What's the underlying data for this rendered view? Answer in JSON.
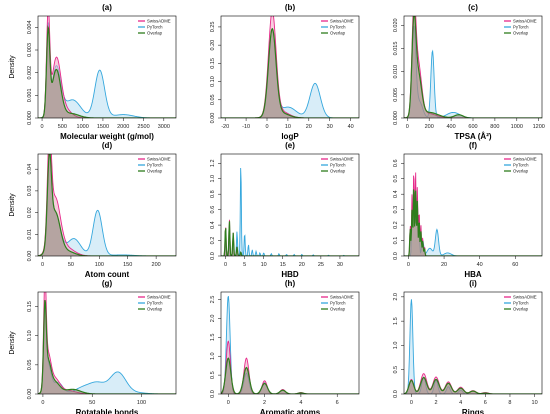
{
  "figure": {
    "legend": [
      "SwissADME",
      "PyTorch",
      "Overlap"
    ],
    "colors": {
      "SwissADME": "#e6298a",
      "PyTorch": "#35a7dd",
      "Overlap": "#2e7d1c",
      "fill_swiss": "#f2a5c3",
      "fill_py": "#a8d8ef",
      "fill_overlap": "#7a7a5a"
    }
  },
  "chart_data": [
    {
      "type": "area",
      "panel": "(a)",
      "xlabel": "Molecular weight (g/mol)",
      "ylabel": "Density",
      "xlim": [
        -100,
        3300
      ],
      "ylim": [
        0,
        0.0045
      ],
      "xticks": [
        0,
        500,
        1000,
        1500,
        2000,
        2500,
        3000
      ],
      "yticks": [
        0,
        0.001,
        0.002,
        0.003,
        0.004
      ],
      "yticklabels": [
        "0.000",
        "0.001",
        "0.002",
        "0.003",
        "0.004"
      ],
      "series": [
        {
          "name": "SwissADME",
          "peaks": [
            [
              150,
              0.0044,
              40
            ],
            [
              350,
              0.0025,
              110
            ],
            [
              550,
              0.0004,
              160
            ]
          ]
        },
        {
          "name": "PyTorch",
          "peaks": [
            [
              150,
              0.0038,
              40
            ],
            [
              350,
              0.0022,
              110
            ],
            [
              750,
              0.0008,
              200
            ],
            [
              1420,
              0.0021,
              120
            ],
            [
              2000,
              0.00015,
              250
            ]
          ]
        },
        {
          "name": "Overlap",
          "peaks": [
            [
              150,
              0.0036,
              40
            ],
            [
              350,
              0.0021,
              110
            ],
            [
              700,
              0.0002,
              200
            ]
          ]
        }
      ]
    },
    {
      "type": "area",
      "panel": "(b)",
      "xlabel": "logP",
      "ylabel": "",
      "xlim": [
        -22,
        44
      ],
      "ylim": [
        0,
        0.28
      ],
      "xticks": [
        -20,
        -10,
        0,
        10,
        20,
        30,
        40
      ],
      "yticks": [
        0,
        0.05,
        0.1,
        0.15,
        0.2,
        0.25
      ],
      "yticklabels": [
        "0.00",
        "0.05",
        "0.10",
        "0.15",
        "0.20",
        "0.25"
      ],
      "series": [
        {
          "name": "SwissADME",
          "peaks": [
            [
              2.5,
              0.28,
              1.8
            ],
            [
              6,
              0.02,
              4
            ]
          ]
        },
        {
          "name": "PyTorch",
          "peaks": [
            [
              2.5,
              0.24,
              1.8
            ],
            [
              10,
              0.03,
              4
            ],
            [
              23,
              0.095,
              2.5
            ]
          ]
        },
        {
          "name": "Overlap",
          "peaks": [
            [
              2.5,
              0.235,
              1.8
            ],
            [
              6,
              0.015,
              4
            ]
          ]
        }
      ]
    },
    {
      "type": "area",
      "panel": "(c)",
      "xlabel": "TPSA (Å²)",
      "ylabel": "",
      "xlim": [
        -30,
        1230
      ],
      "ylim": [
        0,
        0.022
      ],
      "xticks": [
        0,
        200,
        400,
        600,
        800,
        1000,
        1200
      ],
      "yticks": [
        0,
        0.005,
        0.01,
        0.015,
        0.02
      ],
      "yticklabels": [
        "0.000",
        "0.005",
        "0.010",
        "0.015",
        "0.020"
      ],
      "series": [
        {
          "name": "SwissADME",
          "peaks": [
            [
              60,
              0.021,
              18
            ],
            [
              100,
              0.011,
              30
            ],
            [
              180,
              0.001,
              80
            ]
          ]
        },
        {
          "name": "PyTorch",
          "peaks": [
            [
              60,
              0.019,
              18
            ],
            [
              110,
              0.0035,
              30
            ],
            [
              230,
              0.0145,
              15
            ],
            [
              420,
              0.0012,
              60
            ]
          ]
        },
        {
          "name": "Overlap",
          "peaks": [
            [
              60,
              0.0185,
              18
            ],
            [
              100,
              0.009,
              30
            ],
            [
              200,
              0.0012,
              80
            ],
            [
              470,
              0.0007,
              40
            ]
          ]
        }
      ]
    },
    {
      "type": "area",
      "panel": "(d)",
      "xlabel": "Atom count",
      "ylabel": "Density",
      "xlim": [
        -8,
        235
      ],
      "ylim": [
        0,
        0.047
      ],
      "xticks": [
        0,
        50,
        100,
        150,
        200
      ],
      "yticks": [
        0,
        0.01,
        0.02,
        0.03,
        0.04
      ],
      "yticklabels": [
        "0.00",
        "0.01",
        "0.02",
        "0.03",
        "0.04"
      ],
      "series": [
        {
          "name": "SwissADME",
          "peaks": [
            [
              12,
              0.045,
              3.5
            ],
            [
              22,
              0.025,
              9
            ],
            [
              40,
              0.004,
              15
            ]
          ]
        },
        {
          "name": "PyTorch",
          "peaks": [
            [
              12,
              0.038,
              3.5
            ],
            [
              22,
              0.02,
              9
            ],
            [
              55,
              0.008,
              12
            ],
            [
              97,
              0.021,
              8
            ],
            [
              140,
              0.0005,
              20
            ]
          ]
        },
        {
          "name": "Overlap",
          "peaks": [
            [
              12,
              0.037,
              3.5
            ],
            [
              22,
              0.02,
              9
            ],
            [
              45,
              0.002,
              12
            ]
          ]
        }
      ]
    },
    {
      "type": "area",
      "panel": "(e)",
      "xlabel": "HBD",
      "ylabel": "",
      "xlim": [
        -1.2,
        35
      ],
      "ylim": [
        0,
        1.32
      ],
      "xticks": [
        0,
        5,
        10,
        15,
        20,
        25,
        30
      ],
      "yticks": [
        0,
        0.2,
        0.4,
        0.6,
        0.8,
        1.0,
        1.2
      ],
      "yticklabels": [
        "0.0",
        "0.2",
        "0.4",
        "0.6",
        "0.8",
        "1.0",
        "1.2"
      ],
      "series": [
        {
          "name": "SwissADME",
          "peaks": [
            [
              0,
              0.4,
              0.13
            ],
            [
              1,
              0.48,
              0.13
            ],
            [
              2,
              0.3,
              0.13
            ],
            [
              3,
              0.12,
              0.13
            ],
            [
              4,
              0.05,
              0.13
            ]
          ]
        },
        {
          "name": "PyTorch",
          "peaks": [
            [
              0,
              0.18,
              0.13
            ],
            [
              1,
              0.22,
              0.13
            ],
            [
              2,
              0.13,
              0.13
            ],
            [
              3,
              0.32,
              0.13
            ],
            [
              4,
              1.22,
              0.13
            ],
            [
              5,
              0.3,
              0.13
            ],
            [
              6,
              0.15,
              0.13
            ],
            [
              7,
              0.08,
              0.13
            ],
            [
              8,
              0.06,
              0.13
            ],
            [
              9,
              0.04,
              0.13
            ],
            [
              10,
              0.04,
              0.13
            ],
            [
              12,
              0.03,
              0.13
            ],
            [
              14,
              0.03,
              0.13
            ],
            [
              16,
              0.02,
              0.13
            ],
            [
              18,
              0.02,
              0.13
            ],
            [
              20,
              0.02,
              0.13
            ],
            [
              23,
              0.015,
              0.13
            ],
            [
              27,
              0.01,
              0.13
            ],
            [
              31,
              0.008,
              0.13
            ]
          ]
        },
        {
          "name": "Overlap",
          "peaks": [
            [
              0,
              0.39,
              0.13
            ],
            [
              1,
              0.46,
              0.13
            ],
            [
              2,
              0.3,
              0.13
            ],
            [
              3,
              0.12,
              0.13
            ],
            [
              4,
              0.05,
              0.13
            ]
          ]
        }
      ]
    },
    {
      "type": "area",
      "panel": "(f)",
      "xlabel": "HBA",
      "ylabel": "",
      "xlim": [
        -2.5,
        75
      ],
      "ylim": [
        0,
        0.66
      ],
      "xticks": [
        0,
        20,
        40,
        60
      ],
      "yticks": [
        0,
        0.1,
        0.2,
        0.3,
        0.4,
        0.5,
        0.6
      ],
      "yticklabels": [
        "0.0",
        "0.1",
        "0.2",
        "0.3",
        "0.4",
        "0.5",
        "0.6"
      ],
      "series": [
        {
          "name": "SwissADME",
          "peaks": [
            [
              1,
              0.2,
              0.28
            ],
            [
              2,
              0.4,
              0.28
            ],
            [
              3,
              0.58,
              0.28
            ],
            [
              4,
              0.55,
              0.28
            ],
            [
              5,
              0.45,
              0.28
            ],
            [
              6,
              0.3,
              0.28
            ],
            [
              7,
              0.2,
              0.28
            ],
            [
              8,
              0.12,
              0.28
            ],
            [
              9,
              0.06,
              0.28
            ]
          ]
        },
        {
          "name": "PyTorch",
          "peaks": [
            [
              2,
              0.3,
              0.28
            ],
            [
              3,
              0.5,
              0.28
            ],
            [
              4,
              0.45,
              0.28
            ],
            [
              5,
              0.38,
              0.28
            ],
            [
              6,
              0.25,
              0.28
            ],
            [
              8,
              0.1,
              0.6
            ],
            [
              12,
              0.05,
              1.5
            ],
            [
              16,
              0.17,
              0.9
            ],
            [
              22,
              0.02,
              2
            ]
          ]
        },
        {
          "name": "Overlap",
          "peaks": [
            [
              1,
              0.18,
              0.28
            ],
            [
              2,
              0.3,
              0.28
            ],
            [
              3,
              0.48,
              0.28
            ],
            [
              4,
              0.43,
              0.28
            ],
            [
              5,
              0.36,
              0.28
            ],
            [
              6,
              0.24,
              0.28
            ],
            [
              7,
              0.16,
              0.28
            ],
            [
              8,
              0.1,
              0.28
            ],
            [
              9,
              0.05,
              0.28
            ]
          ]
        }
      ]
    },
    {
      "type": "area",
      "panel": "(g)",
      "xlabel": "Rotatable bonds",
      "ylabel": "Density",
      "xlim": [
        -5,
        135
      ],
      "ylim": [
        0,
        0.175
      ],
      "xticks": [
        0,
        50,
        100
      ],
      "yticks": [
        0,
        0.05,
        0.1,
        0.15
      ],
      "yticklabels": [
        "0.00",
        "0.05",
        "0.10",
        "0.15"
      ],
      "series": [
        {
          "name": "SwissADME",
          "peaks": [
            [
              2,
              0.165,
              1.3
            ],
            [
              5,
              0.06,
              3
            ],
            [
              12,
              0.025,
              5
            ],
            [
              25,
              0.006,
              8
            ]
          ]
        },
        {
          "name": "PyTorch",
          "peaks": [
            [
              2,
              0.13,
              1.3
            ],
            [
              5,
              0.05,
              3
            ],
            [
              15,
              0.02,
              5
            ],
            [
              40,
              0.01,
              8
            ],
            [
              55,
              0.018,
              8
            ],
            [
              76,
              0.037,
              8
            ],
            [
              95,
              0.002,
              10
            ]
          ]
        },
        {
          "name": "Overlap",
          "peaks": [
            [
              2,
              0.128,
              1.3
            ],
            [
              5,
              0.05,
              3
            ],
            [
              12,
              0.02,
              5
            ],
            [
              30,
              0.008,
              8
            ]
          ]
        }
      ]
    },
    {
      "type": "area",
      "panel": "(h)",
      "xlabel": "Aromatic atoms",
      "ylabel": "",
      "xlim": [
        -0.4,
        7.2
      ],
      "ylim": [
        0,
        2.7
      ],
      "xticks": [
        0,
        2,
        4,
        6
      ],
      "yticks": [
        0,
        0.5,
        1.0,
        1.5,
        2.0,
        2.5
      ],
      "yticklabels": [
        "0.0",
        "0.5",
        "1.0",
        "1.5",
        "2.0",
        "2.5"
      ],
      "series": [
        {
          "name": "SwissADME",
          "peaks": [
            [
              0,
              1.4,
              0.12
            ],
            [
              1,
              0.95,
              0.14
            ],
            [
              2,
              0.35,
              0.14
            ],
            [
              3,
              0.12,
              0.14
            ],
            [
              4,
              0.04,
              0.14
            ]
          ]
        },
        {
          "name": "PyTorch",
          "peaks": [
            [
              0,
              2.6,
              0.1
            ],
            [
              1,
              0.55,
              0.14
            ],
            [
              2,
              0.3,
              0.14
            ],
            [
              3,
              0.1,
              0.14
            ]
          ]
        },
        {
          "name": "Overlap",
          "peaks": [
            [
              0,
              0.95,
              0.14
            ],
            [
              1,
              0.7,
              0.16
            ],
            [
              2,
              0.28,
              0.16
            ],
            [
              3,
              0.1,
              0.16
            ],
            [
              4,
              0.03,
              0.16
            ]
          ]
        }
      ]
    },
    {
      "type": "area",
      "panel": "(i)",
      "xlabel": "Rings",
      "ylabel": "",
      "xlim": [
        -0.6,
        10.6
      ],
      "ylim": [
        0,
        2.1
      ],
      "xticks": [
        0,
        2,
        4,
        6,
        8,
        10
      ],
      "yticks": [
        0,
        0.5,
        1.0,
        1.5,
        2.0
      ],
      "yticklabels": [
        "0.0",
        "0.5",
        "1.0",
        "1.5",
        "2.0"
      ],
      "series": [
        {
          "name": "SwissADME",
          "peaks": [
            [
              0,
              0.3,
              0.2
            ],
            [
              1,
              0.42,
              0.25
            ],
            [
              2,
              0.35,
              0.25
            ],
            [
              3,
              0.25,
              0.25
            ],
            [
              4,
              0.14,
              0.25
            ],
            [
              5,
              0.07,
              0.25
            ],
            [
              6,
              0.03,
              0.25
            ]
          ]
        },
        {
          "name": "PyTorch",
          "peaks": [
            [
              0,
              1.95,
              0.12
            ],
            [
              1,
              0.35,
              0.15
            ],
            [
              2,
              0.28,
              0.15
            ],
            [
              3,
              0.15,
              0.15
            ],
            [
              4,
              0.08,
              0.15
            ]
          ]
        },
        {
          "name": "Overlap",
          "peaks": [
            [
              0,
              0.28,
              0.2
            ],
            [
              1,
              0.34,
              0.25
            ],
            [
              2,
              0.3,
              0.25
            ],
            [
              3,
              0.22,
              0.25
            ],
            [
              4,
              0.12,
              0.25
            ],
            [
              5,
              0.06,
              0.25
            ],
            [
              6,
              0.02,
              0.25
            ]
          ]
        }
      ]
    }
  ]
}
